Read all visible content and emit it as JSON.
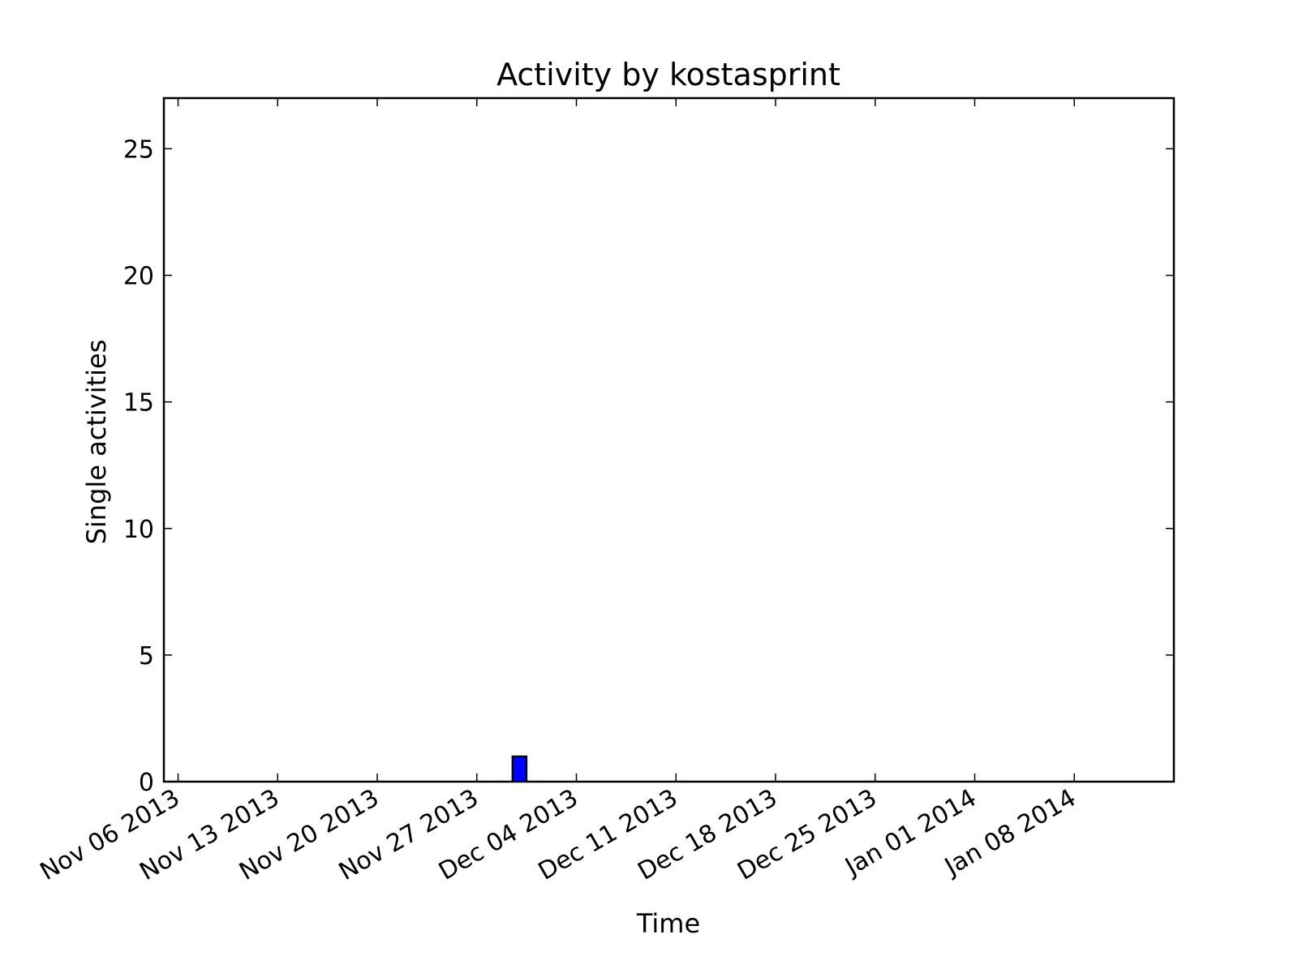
{
  "chart_data": {
    "type": "bar",
    "title": "Activity by kostasprint",
    "xlabel": "Time",
    "ylabel": "Single activities",
    "x_axis_type": "date",
    "xlim": [
      "2013-11-05",
      "2014-01-15"
    ],
    "ylim": [
      0,
      27
    ],
    "x_ticks": [
      {
        "date": "2013-11-06",
        "label": "Nov 06 2013"
      },
      {
        "date": "2013-11-13",
        "label": "Nov 13 2013"
      },
      {
        "date": "2013-11-20",
        "label": "Nov 20 2013"
      },
      {
        "date": "2013-11-27",
        "label": "Nov 27 2013"
      },
      {
        "date": "2013-12-04",
        "label": "Dec 04 2013"
      },
      {
        "date": "2013-12-11",
        "label": "Dec 11 2013"
      },
      {
        "date": "2013-12-18",
        "label": "Dec 18 2013"
      },
      {
        "date": "2013-12-25",
        "label": "Dec 25 2013"
      },
      {
        "date": "2014-01-01",
        "label": "Jan 01 2014"
      },
      {
        "date": "2014-01-08",
        "label": "Jan 08 2014"
      }
    ],
    "y_ticks": [
      0,
      5,
      10,
      15,
      20,
      25
    ],
    "bars": [
      {
        "date": "2013-11-30",
        "value": 1
      }
    ],
    "bar_color": "#0000ff",
    "grid": false,
    "legend": false
  }
}
